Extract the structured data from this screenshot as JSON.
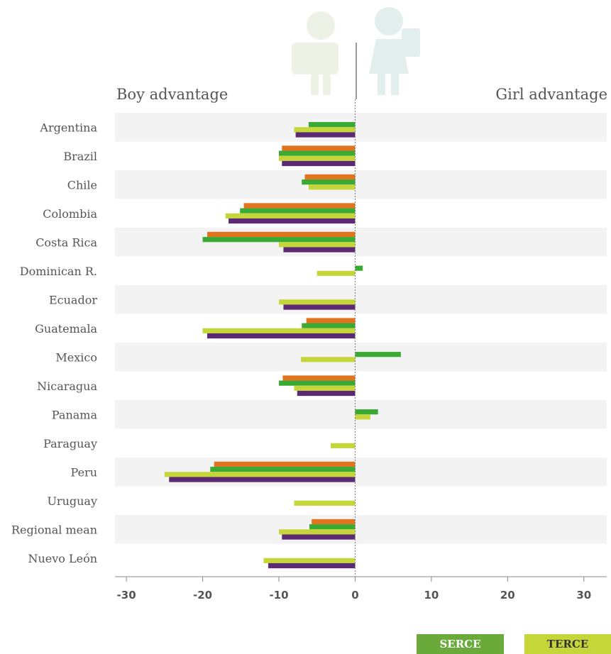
{
  "chart_data": {
    "type": "bar",
    "orientation": "horizontal",
    "left_label": "Boy advantage",
    "right_label": "Girl advantage",
    "categories": [
      "Argentina",
      "Brazil",
      "Chile",
      "Colombia",
      "Costa Rica",
      "Dominican R.",
      "Ecuador",
      "Guatemala",
      "Mexico",
      "Nicaragua",
      "Panama",
      "Paraguay",
      "Peru",
      "Uruguay",
      "Regional mean",
      "Nuevo León"
    ],
    "xlim": [
      -31.5,
      33
    ],
    "xticks": [
      -30,
      -20,
      -10,
      0,
      10,
      20,
      30
    ],
    "xtick_labels": [
      "-30",
      "-20",
      "-10",
      "0",
      "10",
      "20",
      "30"
    ],
    "grid": false,
    "legend_position": "bottom-right",
    "series": [
      {
        "color": "#e2731f",
        "values": [
          null,
          -9.6,
          -6.6,
          -14.6,
          -19.4,
          null,
          null,
          -6.4,
          null,
          -9.5,
          null,
          null,
          -18.5,
          null,
          -5.7,
          null
        ]
      },
      {
        "name": "SERCE",
        "color": "#3aaa35",
        "values": [
          -6.1,
          -10,
          -7,
          -15.1,
          -20,
          1,
          null,
          -7,
          6,
          -10,
          3,
          null,
          -19,
          null,
          -6,
          null
        ]
      },
      {
        "name": "TERCE",
        "color": "#c5d63a",
        "values": [
          -8,
          -10,
          -6.1,
          -17,
          -10,
          -5,
          -10,
          -20,
          -7.1,
          -8,
          2,
          -3.2,
          -25,
          -8,
          -10,
          -12
        ]
      },
      {
        "color": "#5b2a73",
        "values": [
          -7.8,
          -9.6,
          null,
          -16.6,
          -9.4,
          null,
          -9.4,
          -19.4,
          null,
          -7.6,
          null,
          null,
          -24.4,
          null,
          -9.6,
          -11.4
        ]
      }
    ]
  },
  "legend": {
    "serce": "SERCE",
    "terce": "TERCE"
  }
}
